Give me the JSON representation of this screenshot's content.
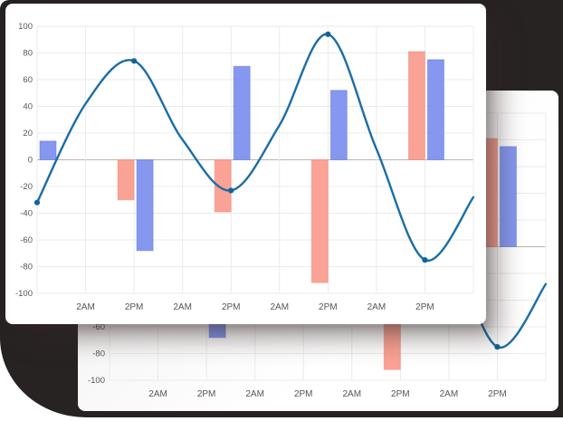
{
  "page": {
    "description": "Two stacked white chart cards showing the identical combo bar+line chart on a dark backdrop",
    "colors": {
      "backdrop": "#282323",
      "card_bg": "#ffffff",
      "grid_line": "#ebebeb",
      "zero_axis_line": "#b5b5b5",
      "tick_text": "#555555"
    }
  },
  "cards": {
    "front": {
      "name": "front-chart-card"
    },
    "back": {
      "name": "back-chart-card",
      "note": "same chart as front card, offset down-right, partially hidden"
    }
  },
  "chart_data": {
    "type": "combo",
    "subtypes": [
      "bar",
      "line"
    ],
    "title": "",
    "xlabel": "",
    "ylabel": "",
    "x_tick_labels": [
      "2AM",
      "2PM",
      "2AM",
      "2PM",
      "2AM",
      "2PM",
      "2AM",
      "2PM"
    ],
    "y_ticks": [
      100,
      80,
      60,
      40,
      20,
      0,
      -20,
      -40,
      -60,
      -80,
      -100
    ],
    "ylim": [
      -100,
      100
    ],
    "grid": true,
    "legend": "none",
    "position_note": "data plotted at vertical gridline indices 0-9; x tick labels occupy gridlines 1-8; bars and line markers sit at gridlines 0,2,4,6,8",
    "series": [
      {
        "name": "salmon-bars",
        "type": "bar",
        "color": "#fa9a8c",
        "edge_color": "#f08572",
        "positions": [
          2,
          4,
          6,
          8
        ],
        "values": [
          -30,
          -39,
          -92,
          81
        ]
      },
      {
        "name": "blue-bars",
        "type": "bar",
        "color": "#7b8eee",
        "edge_color": "#6678e0",
        "positions": [
          0,
          2,
          4,
          6,
          8
        ],
        "values": [
          14,
          -68,
          70,
          52,
          75
        ]
      },
      {
        "name": "trend-line",
        "type": "line",
        "smooth": true,
        "color": "#1a6da6",
        "marker_color": "#12639c",
        "marker_positions": [
          0,
          2,
          4,
          6,
          8
        ],
        "marker_values": [
          -32,
          74,
          -23,
          94,
          -75
        ],
        "curve_positions": [
          0,
          1,
          2,
          3,
          4,
          5,
          6,
          7,
          8,
          9
        ],
        "curve_values": [
          -32,
          42,
          74,
          15,
          -23,
          26,
          94,
          8,
          -75,
          -28
        ]
      }
    ]
  }
}
